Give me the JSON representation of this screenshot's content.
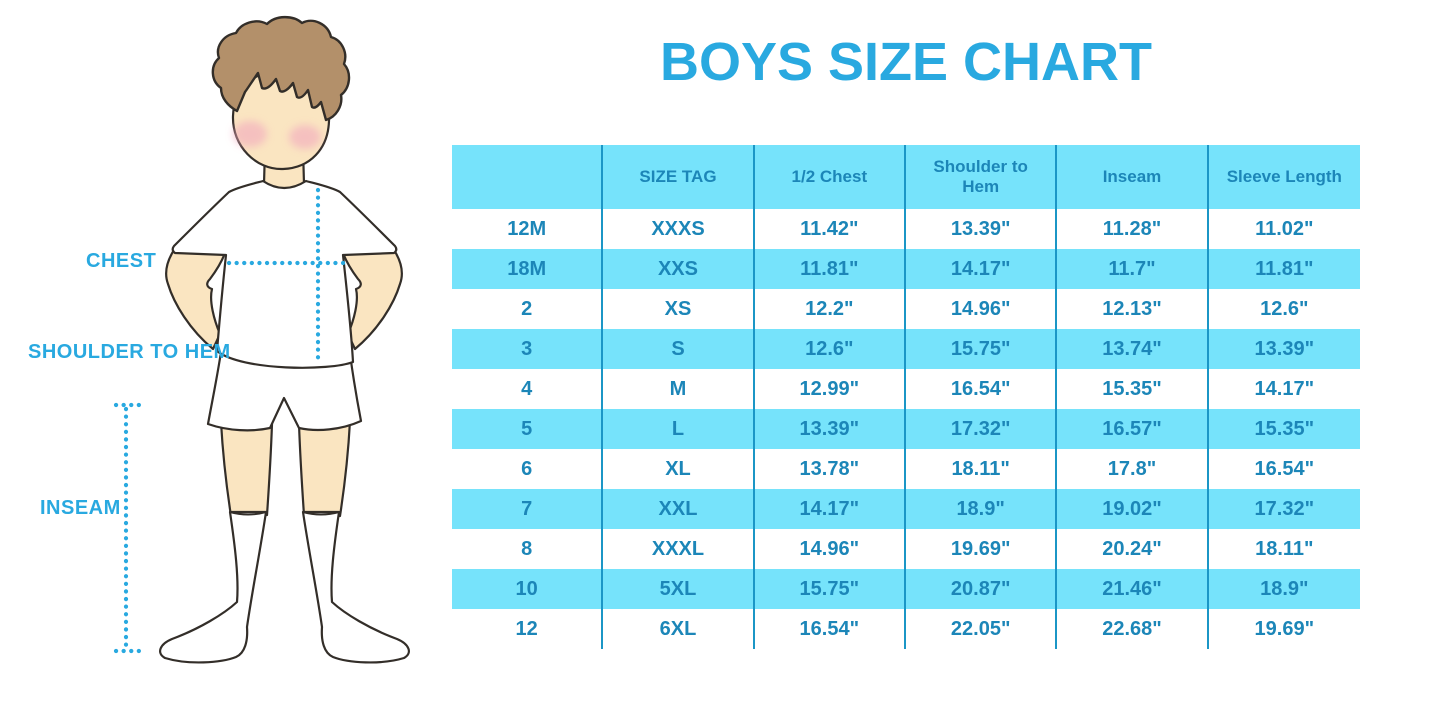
{
  "title": "BOYS SIZE CHART",
  "colors": {
    "accent": "#29A9E0",
    "table_text": "#1C86B8",
    "row_fill": "#76E3FB",
    "divider": "#1B96C6",
    "skin": "#FAE5C1",
    "hair": "#B3906A",
    "outline": "#332E29",
    "cheek": "#F2A9BE",
    "garment": "#FFFFFF"
  },
  "figure_labels": {
    "chest": "CHEST",
    "shoulder_to_hem": "SHOULDER TO HEM",
    "inseam": "INSEAM"
  },
  "chart_data": {
    "type": "table",
    "title": "BOYS SIZE CHART",
    "columns": [
      "",
      "SIZE TAG",
      "1/2 Chest",
      "Shoulder to Hem",
      "Inseam",
      "Sleeve Length"
    ],
    "rows": [
      [
        "12M",
        "XXXS",
        "11.42\"",
        "13.39\"",
        "11.28\"",
        "11.02\""
      ],
      [
        "18M",
        "XXS",
        "11.81\"",
        "14.17\"",
        "11.7\"",
        "11.81\""
      ],
      [
        "2",
        "XS",
        "12.2\"",
        "14.96\"",
        "12.13\"",
        "12.6\""
      ],
      [
        "3",
        "S",
        "12.6\"",
        "15.75\"",
        "13.74\"",
        "13.39\""
      ],
      [
        "4",
        "M",
        "12.99\"",
        "16.54\"",
        "15.35\"",
        "14.17\""
      ],
      [
        "5",
        "L",
        "13.39\"",
        "17.32\"",
        "16.57\"",
        "15.35\""
      ],
      [
        "6",
        "XL",
        "13.78\"",
        "18.11\"",
        "17.8\"",
        "16.54\""
      ],
      [
        "7",
        "XXL",
        "14.17\"",
        "18.9\"",
        "19.02\"",
        "17.32\""
      ],
      [
        "8",
        "XXXL",
        "14.96\"",
        "19.69\"",
        "20.24\"",
        "18.11\""
      ],
      [
        "10",
        "5XL",
        "15.75\"",
        "20.87\"",
        "21.46\"",
        "18.9\""
      ],
      [
        "12",
        "6XL",
        "16.54\"",
        "22.05\"",
        "22.68\"",
        "19.69\""
      ]
    ],
    "row_striping": "header and odd data rows light blue, others white",
    "legend_position": "none",
    "grid": "vertical dividers only"
  }
}
